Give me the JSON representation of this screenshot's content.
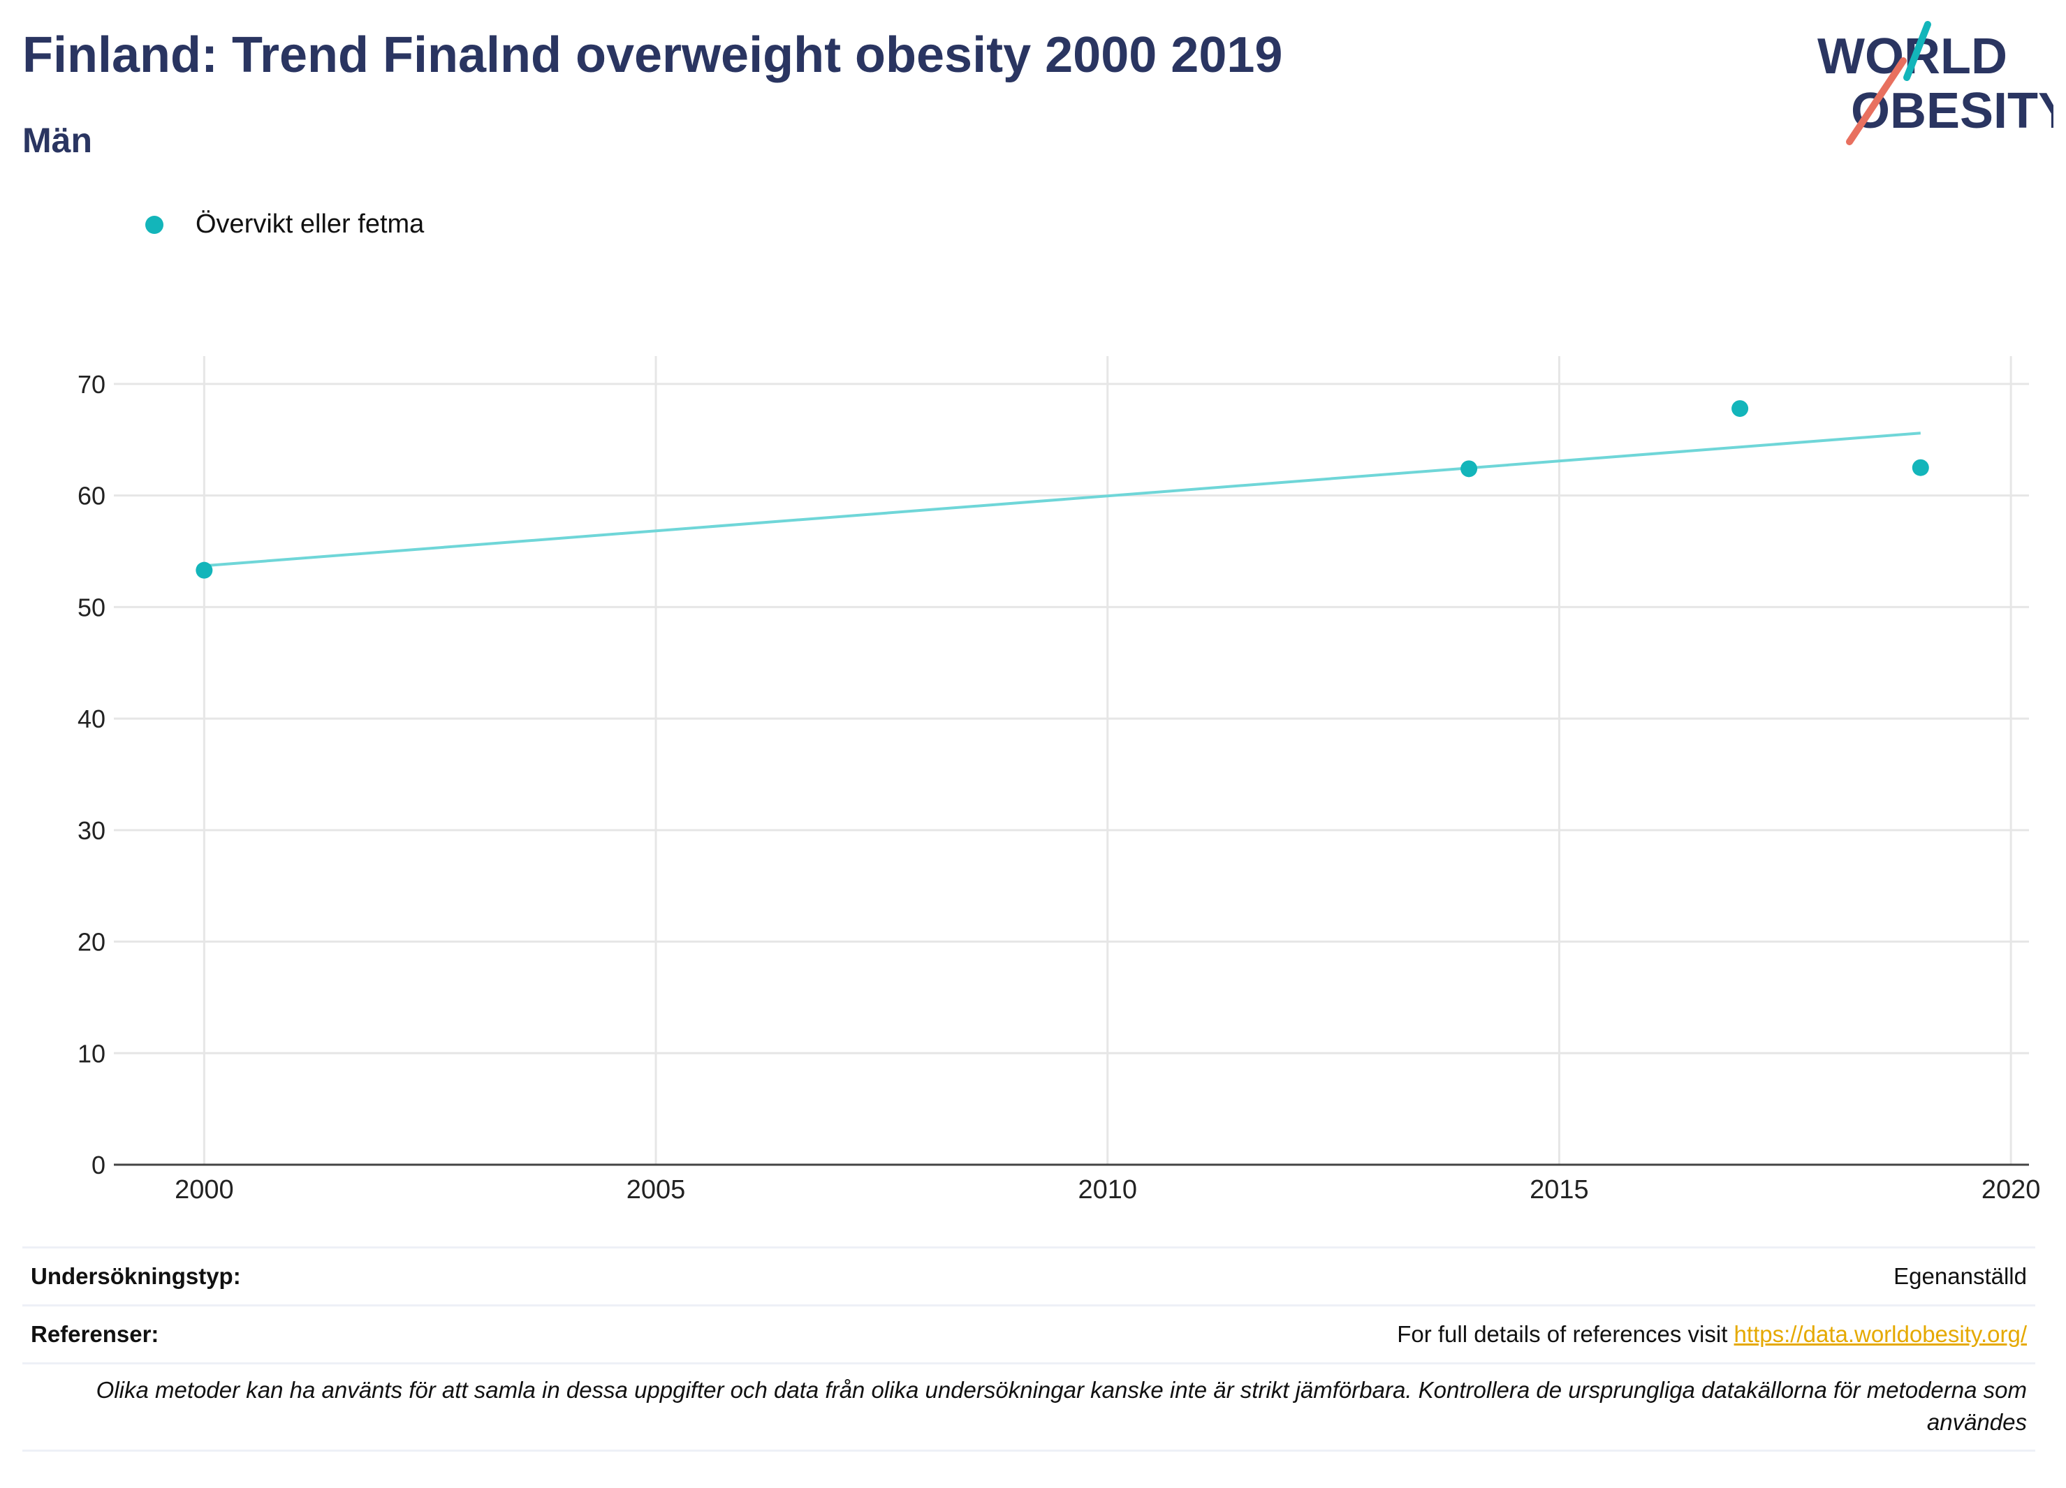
{
  "header": {
    "title": "Finland: Trend Finalnd overweight obesity 2000 2019",
    "subtitle": "Män"
  },
  "logo": {
    "line1": "WORLD",
    "line2": "OBESITY",
    "colors": {
      "navy": "#2a3561",
      "teal": "#13b5ba",
      "coral": "#e8705f"
    }
  },
  "chart_data": {
    "type": "scatter",
    "xlabel": "",
    "ylabel": "",
    "xlim": [
      1999,
      2020.2
    ],
    "ylim": [
      0,
      72.5
    ],
    "x_ticks": [
      2000,
      2005,
      2010,
      2015,
      2020
    ],
    "y_ticks": [
      0,
      10,
      20,
      30,
      40,
      50,
      60,
      70
    ],
    "grid": true,
    "legend_position": "top-left",
    "series": [
      {
        "name": "Övervikt eller fetma",
        "color": "#13b5ba",
        "points": [
          {
            "x": 2000,
            "y": 53.3
          },
          {
            "x": 2014,
            "y": 62.4
          },
          {
            "x": 2017,
            "y": 67.8
          },
          {
            "x": 2019,
            "y": 62.5
          }
        ]
      }
    ],
    "trendline": {
      "color": "#6fd6d8",
      "points": [
        {
          "x": 2000,
          "y": 53.7
        },
        {
          "x": 2019,
          "y": 65.6
        }
      ]
    }
  },
  "footer": {
    "survey_label": "Undersökningstyp:",
    "survey_value": "Egenanställd",
    "references_label": "Referenser:",
    "references_text": "For full details of references visit ",
    "references_link": "https://data.worldobesity.org/",
    "note": "Olika metoder kan ha använts för att samla in dessa uppgifter och data från olika undersökningar kanske inte är strikt jämförbara. Kontrollera de ursprungliga datakällorna för metoderna som användes"
  }
}
